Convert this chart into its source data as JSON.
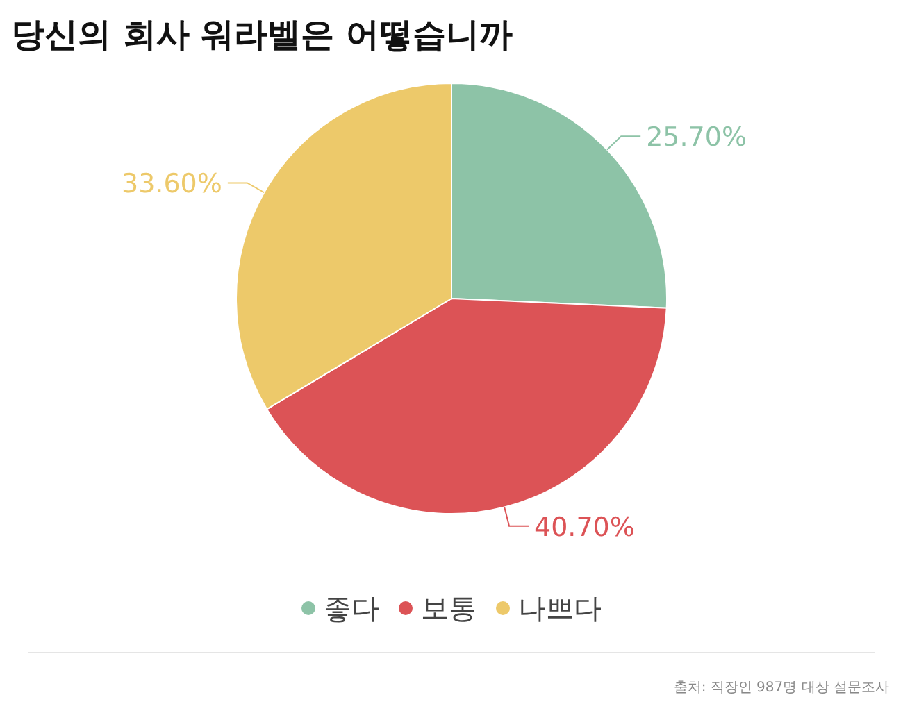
{
  "chart_data": {
    "type": "pie",
    "title": "당신의 회사 워라벨은 어떻습니까",
    "categories": [
      "좋다",
      "보통",
      "나쁘다"
    ],
    "values": [
      25.7,
      40.7,
      33.6
    ],
    "colors": [
      "#8dc3a7",
      "#dc5356",
      "#edc96a"
    ],
    "value_labels": [
      "25.70%",
      "40.70%",
      "33.60%"
    ],
    "legend": "bottom",
    "annotations": [
      "출처: 직장인 987명 대상 설문조사"
    ]
  }
}
